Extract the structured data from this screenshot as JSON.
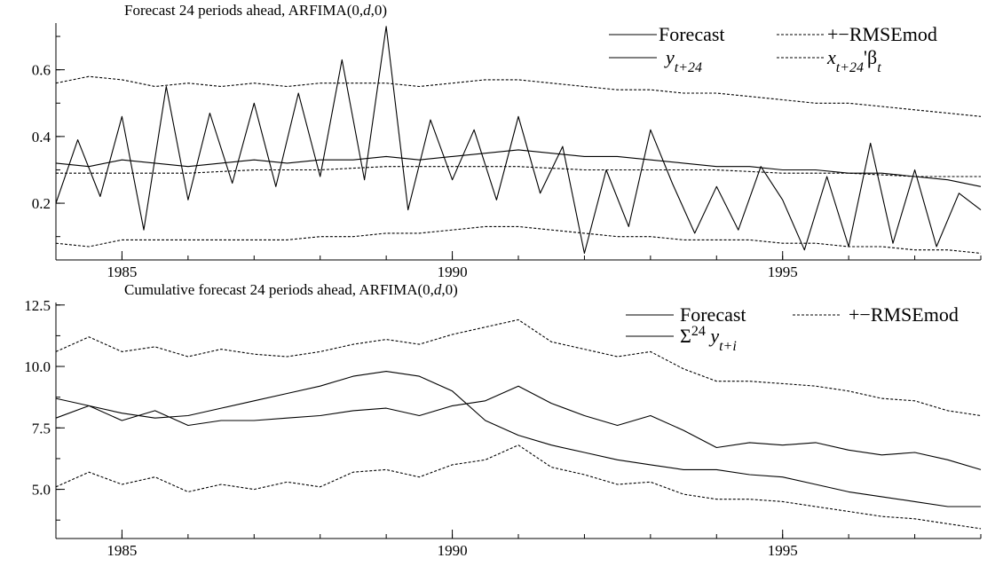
{
  "chart_data": [
    {
      "type": "line",
      "title": "Forecast 24 periods ahead, ARFIMA(0,d,0)",
      "title_parts": [
        {
          "text": "Forecast 24 periods ahead, ARFIMA(0,",
          "style": "normal"
        },
        {
          "text": "d",
          "style": "italic"
        },
        {
          "text": ",0)",
          "style": "normal"
        }
      ],
      "xlim": [
        1984.0,
        1998.0
      ],
      "ylim": [
        0.03,
        0.74
      ],
      "xticks": [
        1985,
        1990,
        1995
      ],
      "xtick_labels": [
        "1985",
        "1990",
        "1995"
      ],
      "yticks": [
        0.2,
        0.4,
        0.6
      ],
      "ytick_labels": [
        "0.2",
        "0.4",
        "0.6"
      ],
      "grid": false,
      "legend_position": "top-right",
      "legend": [
        {
          "key": "forecast",
          "parts": [
            {
              "text": "Forecast",
              "style": "normal"
            }
          ]
        },
        {
          "key": "rmse",
          "parts": [
            {
              "text": "+−RMSEmod",
              "style": "normal"
            }
          ]
        },
        {
          "key": "actual",
          "parts": [
            {
              "text": "y",
              "style": "italic"
            },
            {
              "text": "t+24",
              "style": "italic-sub"
            }
          ]
        },
        {
          "key": "xb",
          "parts": [
            {
              "text": "x",
              "style": "italic"
            },
            {
              "text": "t+24",
              "style": "italic-sub"
            },
            {
              "text": "'β",
              "style": "normal"
            },
            {
              "text": "t",
              "style": "italic-sub"
            }
          ]
        }
      ],
      "series": [
        {
          "key": "forecast",
          "dash": "solid",
          "x": [
            1984.0,
            1984.5,
            1985.0,
            1985.5,
            1986.0,
            1986.5,
            1987.0,
            1987.5,
            1988.0,
            1988.5,
            1989.0,
            1989.5,
            1990.0,
            1990.5,
            1991.0,
            1991.5,
            1992.0,
            1992.5,
            1993.0,
            1993.5,
            1994.0,
            1994.5,
            1995.0,
            1995.5,
            1996.0,
            1996.5,
            1997.0,
            1997.5,
            1998.0
          ],
          "y": [
            0.32,
            0.31,
            0.33,
            0.32,
            0.31,
            0.32,
            0.33,
            0.32,
            0.33,
            0.33,
            0.34,
            0.33,
            0.34,
            0.35,
            0.36,
            0.35,
            0.34,
            0.34,
            0.33,
            0.32,
            0.31,
            0.31,
            0.3,
            0.3,
            0.29,
            0.29,
            0.28,
            0.27,
            0.25
          ]
        },
        {
          "key": "xb",
          "dash": "dotted",
          "x": [
            1984.0,
            1985.0,
            1986.0,
            1987.0,
            1988.0,
            1989.0,
            1990.0,
            1991.0,
            1992.0,
            1993.0,
            1994.0,
            1995.0,
            1996.0,
            1997.0,
            1998.0
          ],
          "y": [
            0.29,
            0.29,
            0.29,
            0.3,
            0.3,
            0.31,
            0.31,
            0.31,
            0.3,
            0.3,
            0.3,
            0.29,
            0.29,
            0.28,
            0.28
          ]
        },
        {
          "key": "rmse_upper",
          "dash": "dotted",
          "x": [
            1984.0,
            1984.5,
            1985.0,
            1985.5,
            1986.0,
            1986.5,
            1987.0,
            1987.5,
            1988.0,
            1988.5,
            1989.0,
            1989.5,
            1990.0,
            1990.5,
            1991.0,
            1991.5,
            1992.0,
            1992.5,
            1993.0,
            1993.5,
            1994.0,
            1994.5,
            1995.0,
            1995.5,
            1996.0,
            1996.5,
            1997.0,
            1997.5,
            1998.0
          ],
          "y": [
            0.56,
            0.58,
            0.57,
            0.55,
            0.56,
            0.55,
            0.56,
            0.55,
            0.56,
            0.56,
            0.56,
            0.55,
            0.56,
            0.57,
            0.57,
            0.56,
            0.55,
            0.54,
            0.54,
            0.53,
            0.53,
            0.52,
            0.51,
            0.5,
            0.5,
            0.49,
            0.48,
            0.47,
            0.46
          ]
        },
        {
          "key": "rmse_lower",
          "dash": "dotted",
          "x": [
            1984.0,
            1984.5,
            1985.0,
            1985.5,
            1986.0,
            1986.5,
            1987.0,
            1987.5,
            1988.0,
            1988.5,
            1989.0,
            1989.5,
            1990.0,
            1990.5,
            1991.0,
            1991.5,
            1992.0,
            1992.5,
            1993.0,
            1993.5,
            1994.0,
            1994.5,
            1995.0,
            1995.5,
            1996.0,
            1996.5,
            1997.0,
            1997.5,
            1998.0
          ],
          "y": [
            0.08,
            0.07,
            0.09,
            0.09,
            0.09,
            0.09,
            0.09,
            0.09,
            0.1,
            0.1,
            0.11,
            0.11,
            0.12,
            0.13,
            0.13,
            0.12,
            0.11,
            0.1,
            0.1,
            0.09,
            0.09,
            0.09,
            0.08,
            0.08,
            0.07,
            0.07,
            0.06,
            0.06,
            0.05
          ]
        },
        {
          "key": "actual",
          "dash": "solid",
          "x": [
            1984.0,
            1984.33,
            1984.67,
            1985.0,
            1985.33,
            1985.67,
            1986.0,
            1986.33,
            1986.67,
            1987.0,
            1987.33,
            1987.67,
            1988.0,
            1988.33,
            1988.67,
            1989.0,
            1989.33,
            1989.67,
            1990.0,
            1990.33,
            1990.67,
            1991.0,
            1991.33,
            1991.67,
            1992.0,
            1992.33,
            1992.67,
            1993.0,
            1993.33,
            1993.67,
            1994.0,
            1994.33,
            1994.67,
            1995.0,
            1995.33,
            1995.67,
            1996.0,
            1996.33,
            1996.67,
            1997.0,
            1997.33,
            1997.67,
            1998.0
          ],
          "y": [
            0.2,
            0.39,
            0.22,
            0.46,
            0.12,
            0.55,
            0.21,
            0.47,
            0.26,
            0.5,
            0.25,
            0.53,
            0.28,
            0.63,
            0.27,
            0.73,
            0.18,
            0.45,
            0.27,
            0.42,
            0.21,
            0.46,
            0.23,
            0.37,
            0.05,
            0.3,
            0.13,
            0.42,
            0.26,
            0.11,
            0.25,
            0.12,
            0.31,
            0.21,
            0.06,
            0.28,
            0.07,
            0.38,
            0.08,
            0.3,
            0.07,
            0.23,
            0.18
          ]
        }
      ]
    },
    {
      "type": "line",
      "title": "Cumulative forecast 24 periods ahead, ARFIMA(0,d,0)",
      "title_parts": [
        {
          "text": "Cumulative forecast 24 periods ahead, ARFIMA(0,",
          "style": "normal"
        },
        {
          "text": "d",
          "style": "italic"
        },
        {
          "text": ",0)",
          "style": "normal"
        }
      ],
      "xlim": [
        1984.0,
        1998.0
      ],
      "ylim": [
        3.0,
        12.6
      ],
      "xticks": [
        1985,
        1990,
        1995
      ],
      "xtick_labels": [
        "1985",
        "1990",
        "1995"
      ],
      "yticks": [
        5.0,
        7.5,
        10.0,
        12.5
      ],
      "ytick_labels": [
        "5.0",
        "7.5",
        "10.0",
        "12.5"
      ],
      "grid": false,
      "legend_position": "top-right",
      "legend": [
        {
          "key": "forecast",
          "parts": [
            {
              "text": "Forecast",
              "style": "normal"
            }
          ]
        },
        {
          "key": "rmse",
          "parts": [
            {
              "text": "+−RMSEmod",
              "style": "normal"
            }
          ]
        },
        {
          "key": "actual",
          "parts": [
            {
              "text": "Σ",
              "style": "normal"
            },
            {
              "text": "24",
              "style": "sup"
            },
            {
              "text": " y",
              "style": "italic"
            },
            {
              "text": "t+i",
              "style": "italic-sub"
            }
          ]
        }
      ],
      "series": [
        {
          "key": "forecast",
          "dash": "solid",
          "x": [
            1984.0,
            1984.5,
            1985.0,
            1985.5,
            1986.0,
            1986.5,
            1987.0,
            1987.5,
            1988.0,
            1988.5,
            1989.0,
            1989.5,
            1990.0,
            1990.5,
            1991.0,
            1991.5,
            1992.0,
            1992.5,
            1993.0,
            1993.5,
            1994.0,
            1994.5,
            1995.0,
            1995.5,
            1996.0,
            1996.5,
            1997.0,
            1997.5,
            1998.0
          ],
          "y": [
            8.7,
            8.4,
            8.1,
            7.9,
            8.0,
            8.3,
            8.6,
            8.9,
            9.2,
            9.6,
            9.8,
            9.6,
            9.0,
            7.8,
            7.2,
            6.8,
            6.5,
            6.2,
            6.0,
            5.8,
            5.8,
            5.6,
            5.5,
            5.2,
            4.9,
            4.7,
            4.5,
            4.3,
            4.3
          ]
        },
        {
          "key": "actual",
          "dash": "solid",
          "x": [
            1984.0,
            1984.5,
            1985.0,
            1985.5,
            1986.0,
            1986.5,
            1987.0,
            1987.5,
            1988.0,
            1988.5,
            1989.0,
            1989.5,
            1990.0,
            1990.5,
            1991.0,
            1991.5,
            1992.0,
            1992.5,
            1993.0,
            1993.5,
            1994.0,
            1994.5,
            1995.0,
            1995.5,
            1996.0,
            1996.5,
            1997.0,
            1997.5,
            1998.0
          ],
          "y": [
            7.9,
            8.4,
            7.8,
            8.2,
            7.6,
            7.8,
            7.8,
            7.9,
            8.0,
            8.2,
            8.3,
            8.0,
            8.4,
            8.6,
            9.2,
            8.5,
            8.0,
            7.6,
            8.0,
            7.4,
            6.7,
            6.9,
            6.8,
            6.9,
            6.6,
            6.4,
            6.5,
            6.2,
            5.8
          ]
        },
        {
          "key": "rmse_upper",
          "dash": "dotted",
          "x": [
            1984.0,
            1984.5,
            1985.0,
            1985.5,
            1986.0,
            1986.5,
            1987.0,
            1987.5,
            1988.0,
            1988.5,
            1989.0,
            1989.5,
            1990.0,
            1990.5,
            1991.0,
            1991.5,
            1992.0,
            1992.5,
            1993.0,
            1993.5,
            1994.0,
            1994.5,
            1995.0,
            1995.5,
            1996.0,
            1996.5,
            1997.0,
            1997.5,
            1998.0
          ],
          "y": [
            10.6,
            11.2,
            10.6,
            10.8,
            10.4,
            10.7,
            10.5,
            10.4,
            10.6,
            10.9,
            11.1,
            10.9,
            11.3,
            11.6,
            11.9,
            11.0,
            10.7,
            10.4,
            10.6,
            9.9,
            9.4,
            9.4,
            9.3,
            9.2,
            9.0,
            8.7,
            8.6,
            8.2,
            8.0
          ]
        },
        {
          "key": "rmse_lower",
          "dash": "dotted",
          "x": [
            1984.0,
            1984.5,
            1985.0,
            1985.5,
            1986.0,
            1986.5,
            1987.0,
            1987.5,
            1988.0,
            1988.5,
            1989.0,
            1989.5,
            1990.0,
            1990.5,
            1991.0,
            1991.5,
            1992.0,
            1992.5,
            1993.0,
            1993.5,
            1994.0,
            1994.5,
            1995.0,
            1995.5,
            1996.0,
            1996.5,
            1997.0,
            1997.5,
            1998.0
          ],
          "y": [
            5.1,
            5.7,
            5.2,
            5.5,
            4.9,
            5.2,
            5.0,
            5.3,
            5.1,
            5.7,
            5.8,
            5.5,
            6.0,
            6.2,
            6.8,
            5.9,
            5.6,
            5.2,
            5.3,
            4.8,
            4.6,
            4.6,
            4.5,
            4.3,
            4.1,
            3.9,
            3.8,
            3.6,
            3.4
          ]
        }
      ]
    }
  ]
}
